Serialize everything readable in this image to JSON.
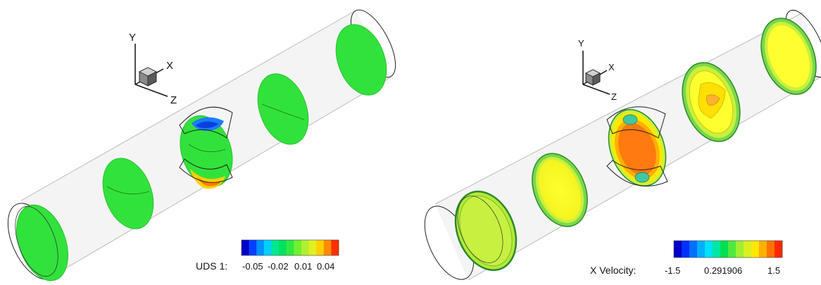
{
  "panels": [
    {
      "id": "left",
      "axes": {
        "y": "Y",
        "x": "X",
        "z": "Z"
      },
      "legend": {
        "title": "UDS 1:",
        "tick_labels": [
          "-0.05",
          "-0.02",
          "0.01",
          "0.04"
        ],
        "colors": [
          "#0000c8",
          "#0040ff",
          "#0090ff",
          "#00d0ff",
          "#00e890",
          "#00e060",
          "#30e840",
          "#70f030",
          "#b0f030",
          "#e0f020",
          "#ffd000",
          "#ff8c00",
          "#ff3000"
        ]
      },
      "field_color": "#32e23c"
    },
    {
      "id": "right",
      "axes": {
        "y": "Y",
        "x": "X",
        "z": "Z"
      },
      "legend": {
        "title": "X Velocity:",
        "tick_labels": [
          "-1.5",
          "0.291906",
          "1.5"
        ],
        "colors": [
          "#0000c8",
          "#0030ff",
          "#0070ff",
          "#00b0ff",
          "#00e0ff",
          "#00e8a0",
          "#00e050",
          "#50e840",
          "#a0f030",
          "#d8f020",
          "#ffe800",
          "#ffb000",
          "#ff7000",
          "#ff2800"
        ]
      },
      "field_color": "#ffff33"
    }
  ]
}
